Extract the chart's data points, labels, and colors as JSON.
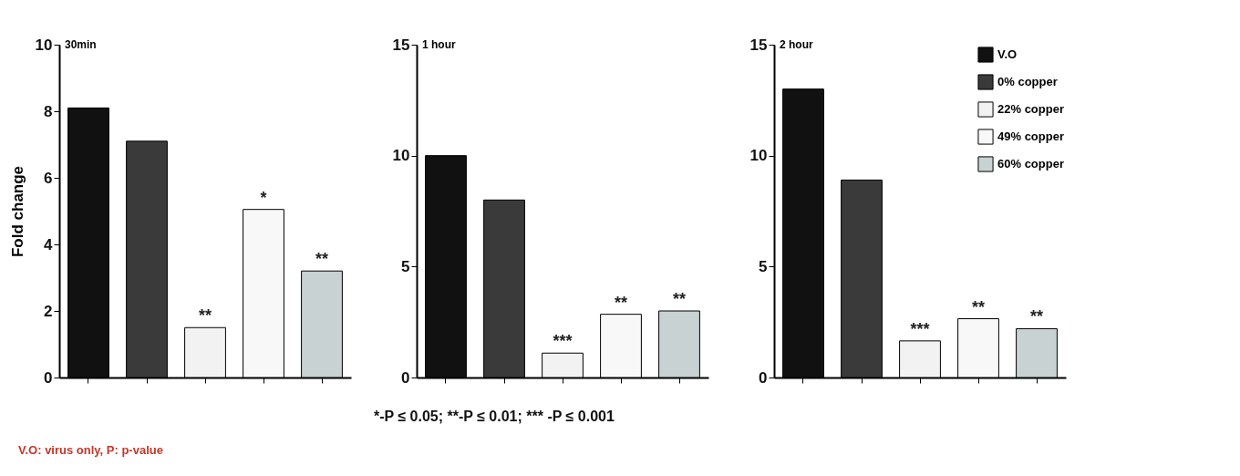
{
  "chart_data": [
    {
      "type": "bar",
      "title": "30min",
      "ylabel": "Fold change",
      "categories": [
        null,
        null,
        null,
        null,
        null
      ],
      "ylim": [
        0,
        10
      ],
      "yticks": [
        0,
        2,
        4,
        6,
        8,
        10
      ],
      "annotations": [
        "V.O: virus only, P: p-value"
      ],
      "series": [
        {
          "color": "#111111",
          "values": [
            8.1,
            null,
            null,
            null,
            null
          ],
          "value_labels": [
            null,
            null,
            null,
            null,
            null
          ]
        },
        {
          "color": "#3a3a3a",
          "values": [
            null,
            7.1,
            null,
            null,
            null
          ],
          "value_labels": [
            null,
            null,
            null,
            null,
            null
          ]
        },
        {
          "color": "#f2f2f2",
          "values": [
            null,
            null,
            1.5,
            null,
            null
          ],
          "value_labels": [
            null,
            null,
            "**",
            null,
            null
          ]
        },
        {
          "color": "#f8f8f8",
          "values": [
            null,
            null,
            null,
            5.05,
            null
          ],
          "value_labels": [
            null,
            null,
            null,
            "*",
            null
          ]
        },
        {
          "color": "#c8d2d2",
          "values": [
            null,
            null,
            null,
            null,
            3.2
          ],
          "value_labels": [
            null,
            null,
            null,
            null,
            "**"
          ]
        }
      ]
    },
    {
      "type": "bar",
      "title": "1 hour",
      "categories": [
        null,
        null,
        null,
        null,
        null
      ],
      "ylim": [
        0,
        15
      ],
      "yticks": [
        0,
        5,
        10,
        15
      ],
      "annotations": [
        "*-P ≤ 0.05; **-P ≤ 0.01; *** -P ≤ 0.001"
      ],
      "series": [
        {
          "color": "#111111",
          "values": [
            10,
            null,
            null,
            null,
            null
          ],
          "value_labels": [
            null,
            null,
            null,
            null,
            null
          ]
        },
        {
          "color": "#3a3a3a",
          "values": [
            null,
            8,
            null,
            null,
            null
          ],
          "value_labels": [
            null,
            null,
            null,
            null,
            null
          ]
        },
        {
          "color": "#f2f2f2",
          "values": [
            null,
            null,
            1.1,
            null,
            null
          ],
          "value_labels": [
            null,
            null,
            "***",
            null,
            null
          ]
        },
        {
          "color": "#f8f8f8",
          "values": [
            null,
            null,
            null,
            2.85,
            null
          ],
          "value_labels": [
            null,
            null,
            null,
            "**",
            null
          ]
        },
        {
          "color": "#c8d2d2",
          "values": [
            null,
            null,
            null,
            null,
            3
          ],
          "value_labels": [
            null,
            null,
            null,
            null,
            "**"
          ]
        }
      ]
    },
    {
      "type": "bar",
      "title": "2 hour",
      "categories": [
        null,
        null,
        null,
        null,
        null
      ],
      "ylim": [
        0,
        15
      ],
      "yticks": [
        0,
        5,
        10,
        15
      ],
      "legend": "top right",
      "series": [
        {
          "name": "V.O",
          "color": "#111111",
          "values": [
            13,
            null,
            null,
            null,
            null
          ],
          "value_labels": [
            null,
            null,
            null,
            null,
            null
          ]
        },
        {
          "name": "0% copper",
          "color": "#3a3a3a",
          "values": [
            null,
            8.9,
            null,
            null,
            null
          ],
          "value_labels": [
            null,
            null,
            null,
            null,
            null
          ]
        },
        {
          "name": "22% copper",
          "color": "#f2f2f2",
          "values": [
            null,
            null,
            1.65,
            null,
            null
          ],
          "value_labels": [
            null,
            null,
            "***",
            null,
            null
          ]
        },
        {
          "name": "49% copper",
          "color": "#f8f8f8",
          "values": [
            null,
            null,
            null,
            2.65,
            null
          ],
          "value_labels": [
            null,
            null,
            null,
            "**",
            null
          ]
        },
        {
          "name": "60% copper",
          "color": "#c8d2d2",
          "values": [
            null,
            null,
            null,
            null,
            2.2
          ],
          "value_labels": [
            null,
            null,
            null,
            null,
            "**"
          ]
        }
      ]
    }
  ]
}
